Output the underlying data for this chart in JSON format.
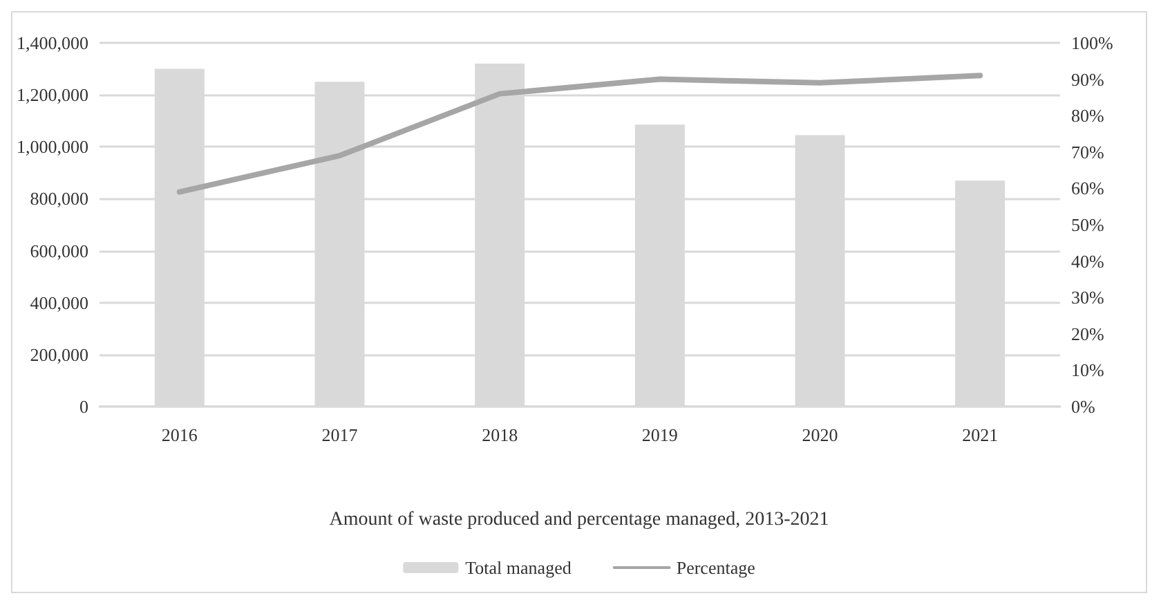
{
  "chart_data": {
    "type": "bar",
    "title": "Amount of waste produced and percentage managed, 2013-2021",
    "categories": [
      "2016",
      "2017",
      "2018",
      "2019",
      "2020",
      "2021"
    ],
    "series": [
      {
        "name": "Total managed",
        "color": "#d9d9d9",
        "values": [
          1300000,
          1250000,
          1320000,
          1085000,
          1045000,
          870000
        ]
      },
      {
        "name": "Percentage",
        "type": "line",
        "axis": "y2",
        "color": "#a6a6a6",
        "values": [
          59,
          69,
          86,
          90,
          89,
          91
        ]
      }
    ],
    "ylim": [
      0,
      1400000
    ],
    "yticks": [
      0,
      {
        "value": 200000,
        "label": "200,000"
      },
      {
        "value": 400000,
        "label": "400,000"
      },
      {
        "value": 600000,
        "label": "600,000"
      },
      {
        "value": 800000,
        "label": "800,000"
      },
      {
        "value": 1000000,
        "label": "1,000,000"
      },
      {
        "value": 1200000,
        "label": "1,200,000"
      },
      {
        "value": 1400000,
        "label": "1,400,000"
      }
    ],
    "y2lim": [
      0,
      100
    ],
    "y2ticks": [
      {
        "value": 0,
        "label": "0%"
      },
      {
        "value": 10,
        "label": "10%"
      },
      {
        "value": 20,
        "label": "20%"
      },
      {
        "value": 30,
        "label": "30%"
      },
      {
        "value": 40,
        "label": "40%"
      },
      {
        "value": 50,
        "label": "50%"
      },
      {
        "value": 60,
        "label": "60%"
      },
      {
        "value": 70,
        "label": "70%"
      },
      {
        "value": 80,
        "label": "80%"
      },
      {
        "value": 90,
        "label": "90%"
      },
      {
        "value": 100,
        "label": "100%"
      }
    ],
    "grid": "y",
    "legend": "bottom",
    "marker": "none",
    "line_style": "solid"
  }
}
